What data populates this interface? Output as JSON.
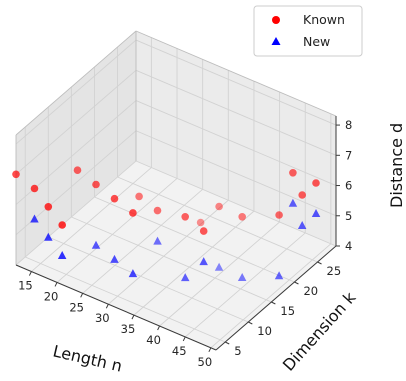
{
  "chart_data": {
    "type": "scatter",
    "projection": "3d",
    "xlabel": "Length n",
    "ylabel": "Dimension k",
    "zlabel": "Distance d",
    "xlim": [
      12,
      51
    ],
    "ylim": [
      3,
      29
    ],
    "zlim": [
      4,
      8.3
    ],
    "xticks": [
      15,
      20,
      25,
      30,
      35,
      40,
      45,
      50
    ],
    "yticks": [
      5,
      10,
      15,
      20,
      25
    ],
    "zticks": [
      4,
      5,
      6,
      7,
      8
    ],
    "grid": true,
    "legend_position": "top-right",
    "series": [
      {
        "name": "Known",
        "marker": "circle",
        "color": "#ff0000",
        "points": [
          {
            "x": 12,
            "y": 3,
            "z": 7
          },
          {
            "x": 12,
            "y": 7,
            "z": 6
          },
          {
            "x": 12,
            "y": 10,
            "z": 5
          },
          {
            "x": 12,
            "y": 13,
            "z": 4
          },
          {
            "x": 24,
            "y": 3,
            "z": 8
          },
          {
            "x": 24,
            "y": 7,
            "z": 7
          },
          {
            "x": 24,
            "y": 11,
            "z": 6
          },
          {
            "x": 24,
            "y": 15,
            "z": 5
          },
          {
            "x": 36,
            "y": 3,
            "z": 8
          },
          {
            "x": 36,
            "y": 7,
            "z": 7
          },
          {
            "x": 36,
            "y": 13,
            "z": 6
          },
          {
            "x": 36,
            "y": 17,
            "z": 5
          },
          {
            "x": 48,
            "y": 3,
            "z": 8
          },
          {
            "x": 48,
            "y": 7,
            "z": 8
          },
          {
            "x": 48,
            "y": 12,
            "z": 7
          },
          {
            "x": 48,
            "y": 20,
            "z": 6
          },
          {
            "x": 48,
            "y": 23,
            "z": 7
          },
          {
            "x": 48,
            "y": 25,
            "z": 6
          },
          {
            "x": 48,
            "y": 28,
            "z": 6
          }
        ]
      },
      {
        "name": "New",
        "marker": "triangle",
        "color": "#0000ff",
        "points": [
          {
            "x": 12,
            "y": 7,
            "z": 5
          },
          {
            "x": 12,
            "y": 10,
            "z": 4
          },
          {
            "x": 12,
            "y": 13,
            "z": 3
          },
          {
            "x": 24,
            "y": 7,
            "z": 5
          },
          {
            "x": 24,
            "y": 11,
            "z": 4
          },
          {
            "x": 24,
            "y": 15,
            "z": 3
          },
          {
            "x": 36,
            "y": 7,
            "z": 6
          },
          {
            "x": 36,
            "y": 13,
            "z": 4
          },
          {
            "x": 36,
            "y": 17,
            "z": 4
          },
          {
            "x": 48,
            "y": 7,
            "z": 6
          },
          {
            "x": 48,
            "y": 12,
            "z": 5
          },
          {
            "x": 48,
            "y": 20,
            "z": 4
          },
          {
            "x": 48,
            "y": 23,
            "z": 6
          },
          {
            "x": 48,
            "y": 25,
            "z": 5
          },
          {
            "x": 48,
            "y": 28,
            "z": 5
          }
        ]
      }
    ]
  }
}
